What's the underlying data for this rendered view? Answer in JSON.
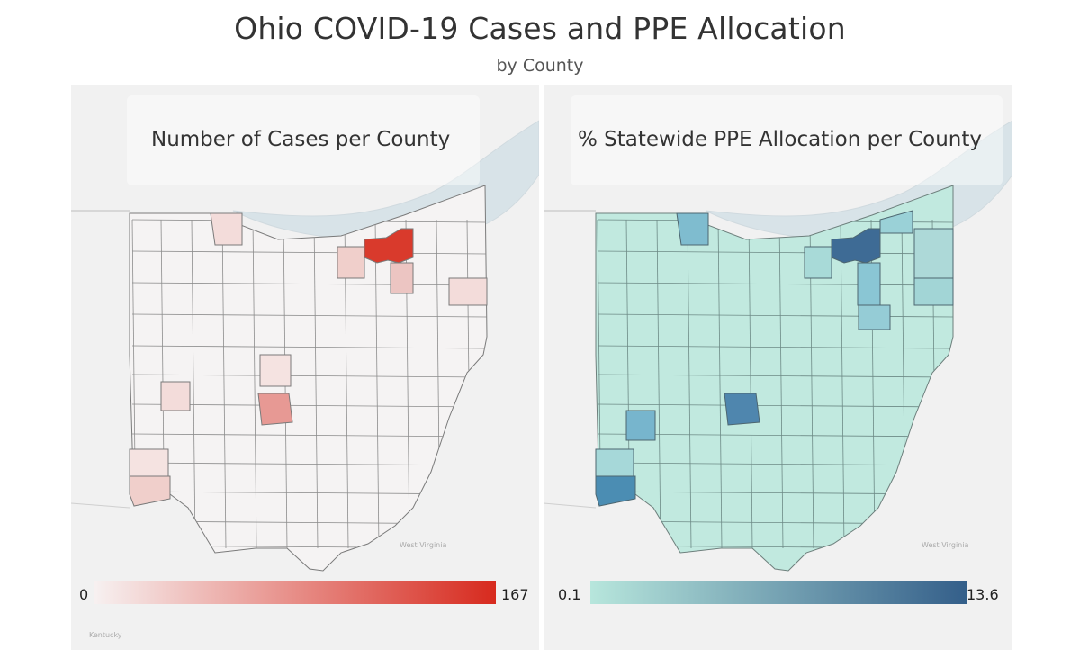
{
  "title": "Ohio COVID-19 Cases and PPE Allocation",
  "subtitle": "by County",
  "maps": {
    "cases": {
      "title": "Number of Cases per County",
      "legend_min": "0",
      "legend_max": "167",
      "color_low": "#f7f1f1",
      "color_high": "#d72a1e"
    },
    "ppe": {
      "title": "% Statewide PPE Allocation per County",
      "legend_min": "0.1",
      "legend_max": "13.6",
      "color_low": "#b7e6dc",
      "color_high": "#345f8a"
    }
  },
  "background_labels": {
    "west_virginia": "West Virginia",
    "kentucky": "Kentucky"
  }
}
